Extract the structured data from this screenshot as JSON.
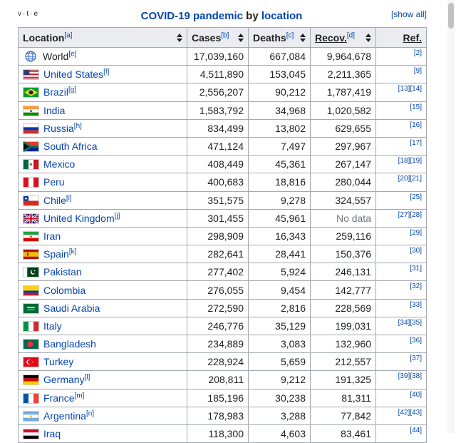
{
  "nav": {
    "v": "v",
    "t": "t",
    "e": "e",
    "sep": "·"
  },
  "caption": {
    "part1": "COVID-19 pandemic",
    "part2": " by ",
    "part3": "location"
  },
  "show_all": "[show all]",
  "headers": {
    "location": "Location",
    "location_note": "[a]",
    "cases": "Cases",
    "cases_note": "[b]",
    "deaths": "Deaths",
    "deaths_note": "[c]",
    "recov": "Recov.",
    "recov_note": "[d]",
    "ref": "Ref."
  },
  "rows": [
    {
      "name": "World",
      "note": "[e]",
      "flag": "globe",
      "cases": "17,039,160",
      "deaths": "667,084",
      "recov": "9,964,678",
      "ref": "[2]"
    },
    {
      "name": "United States",
      "note": "[f]",
      "flag": "us",
      "cases": "4,511,890",
      "deaths": "153,045",
      "recov": "2,211,365",
      "ref": "[9]"
    },
    {
      "name": "Brazil",
      "note": "[g]",
      "flag": "br",
      "cases": "2,556,207",
      "deaths": "90,212",
      "recov": "1,787,419",
      "ref": "[13][14]"
    },
    {
      "name": "India",
      "note": "",
      "flag": "in",
      "cases": "1,583,792",
      "deaths": "34,968",
      "recov": "1,020,582",
      "ref": "[15]"
    },
    {
      "name": "Russia",
      "note": "[h]",
      "flag": "ru",
      "cases": "834,499",
      "deaths": "13,802",
      "recov": "629,655",
      "ref": "[16]"
    },
    {
      "name": "South Africa",
      "note": "",
      "flag": "za",
      "cases": "471,124",
      "deaths": "7,497",
      "recov": "297,967",
      "ref": "[17]"
    },
    {
      "name": "Mexico",
      "note": "",
      "flag": "mx",
      "cases": "408,449",
      "deaths": "45,361",
      "recov": "267,147",
      "ref": "[18][19]"
    },
    {
      "name": "Peru",
      "note": "",
      "flag": "pe",
      "cases": "400,683",
      "deaths": "18,816",
      "recov": "280,044",
      "ref": "[20][21]"
    },
    {
      "name": "Chile",
      "note": "[i]",
      "flag": "cl",
      "cases": "351,575",
      "deaths": "9,278",
      "recov": "324,557",
      "ref": "[25]"
    },
    {
      "name": "United Kingdom",
      "note": "[j]",
      "flag": "gb",
      "cases": "301,455",
      "deaths": "45,961",
      "recov": "No data",
      "ref": "[27][28]"
    },
    {
      "name": "Iran",
      "note": "",
      "flag": "ir",
      "cases": "298,909",
      "deaths": "16,343",
      "recov": "259,116",
      "ref": "[29]"
    },
    {
      "name": "Spain",
      "note": "[k]",
      "flag": "es",
      "cases": "282,641",
      "deaths": "28,441",
      "recov": "150,376",
      "ref": "[30]"
    },
    {
      "name": "Pakistan",
      "note": "",
      "flag": "pk",
      "cases": "277,402",
      "deaths": "5,924",
      "recov": "246,131",
      "ref": "[31]"
    },
    {
      "name": "Colombia",
      "note": "",
      "flag": "co",
      "cases": "276,055",
      "deaths": "9,454",
      "recov": "142,777",
      "ref": "[32]"
    },
    {
      "name": "Saudi Arabia",
      "note": "",
      "flag": "sa",
      "cases": "272,590",
      "deaths": "2,816",
      "recov": "228,569",
      "ref": "[33]"
    },
    {
      "name": "Italy",
      "note": "",
      "flag": "it",
      "cases": "246,776",
      "deaths": "35,129",
      "recov": "199,031",
      "ref": "[34][35]"
    },
    {
      "name": "Bangladesh",
      "note": "",
      "flag": "bd",
      "cases": "234,889",
      "deaths": "3,083",
      "recov": "132,960",
      "ref": "[36]"
    },
    {
      "name": "Turkey",
      "note": "",
      "flag": "tr",
      "cases": "228,924",
      "deaths": "5,659",
      "recov": "212,557",
      "ref": "[37]"
    },
    {
      "name": "Germany",
      "note": "[l]",
      "flag": "de",
      "cases": "208,811",
      "deaths": "9,212",
      "recov": "191,325",
      "ref": "[39][38]"
    },
    {
      "name": "France",
      "note": "[m]",
      "flag": "fr",
      "cases": "185,196",
      "deaths": "30,238",
      "recov": "81,311",
      "ref": "[40]"
    },
    {
      "name": "Argentina",
      "note": "[n]",
      "flag": "ar",
      "cases": "178,983",
      "deaths": "3,288",
      "recov": "77,842",
      "ref": "[42][43]"
    },
    {
      "name": "Iraq",
      "note": "",
      "flag": "iq",
      "cases": "118,300",
      "deaths": "4,603",
      "recov": "83,461",
      "ref": "[44]"
    }
  ]
}
